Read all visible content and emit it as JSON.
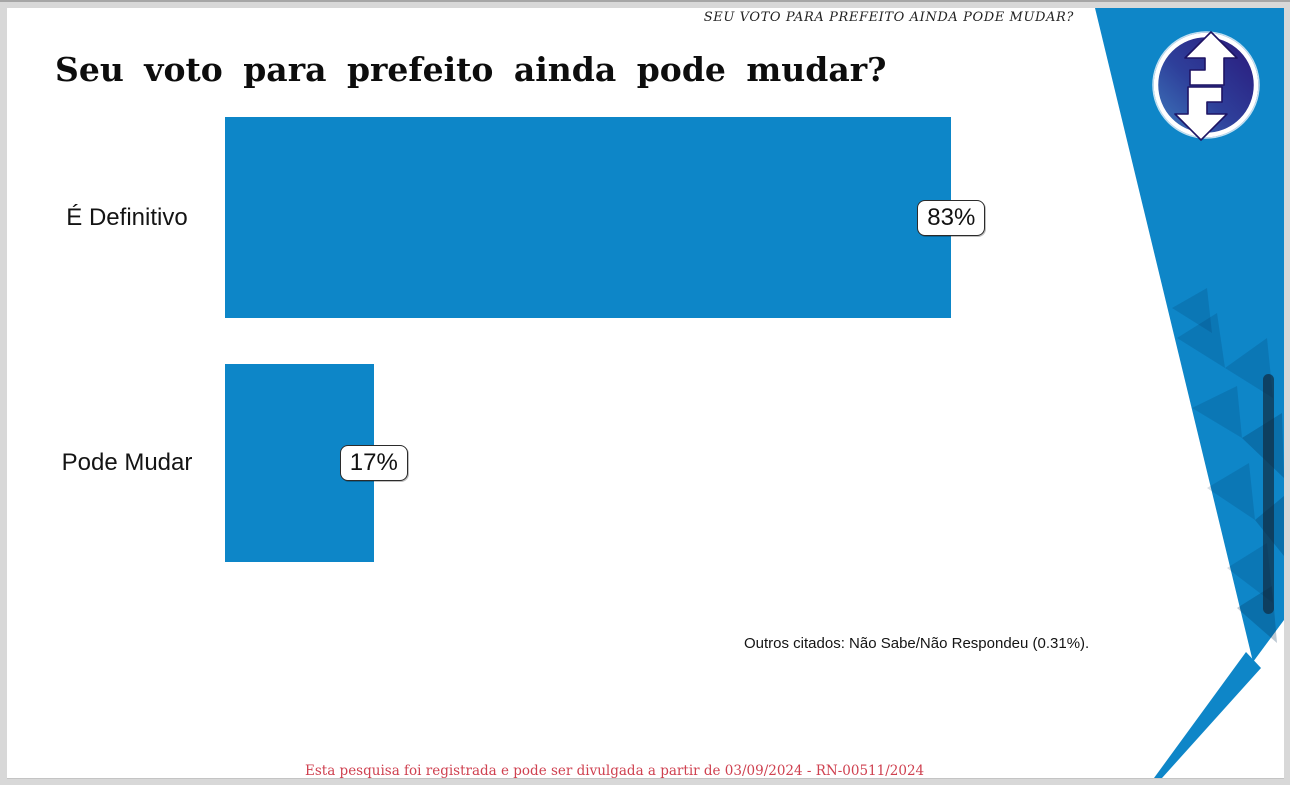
{
  "page": {
    "header_caption": "SEU VOTO PARA PREFEITO AINDA PODE MUDAR?",
    "title": "Seu voto para prefeito ainda pode mudar?",
    "note": "Outros citados: Não Sabe/Não Respondeu (0.31%).",
    "footer": "Esta pesquisa foi registrada e pode ser divulgada a partir de 03/09/2024 - RN-00511/2024"
  },
  "icons": {
    "logo": "up-down-arrows-circle-icon"
  },
  "colors": {
    "bar_blue": "#0d86c8",
    "wedge_blue": "#0e86c8",
    "logo_indigo": "#2a1578",
    "logo_light_blue": "#3f7fc0",
    "footer_red": "#cf4150",
    "frame_gray": "#d8d8d8"
  },
  "chart_data": {
    "type": "bar",
    "orientation": "horizontal",
    "title": "Seu voto para prefeito ainda pode mudar?",
    "categories": [
      "É Definitivo",
      "Pode Mudar"
    ],
    "values": [
      83,
      17
    ],
    "value_labels": [
      "83%",
      "17%"
    ],
    "xlim": [
      0,
      100
    ],
    "grid": false,
    "legend": false,
    "annotation": "Outros citados: Não Sabe/Não Respondeu (0.31%)."
  }
}
